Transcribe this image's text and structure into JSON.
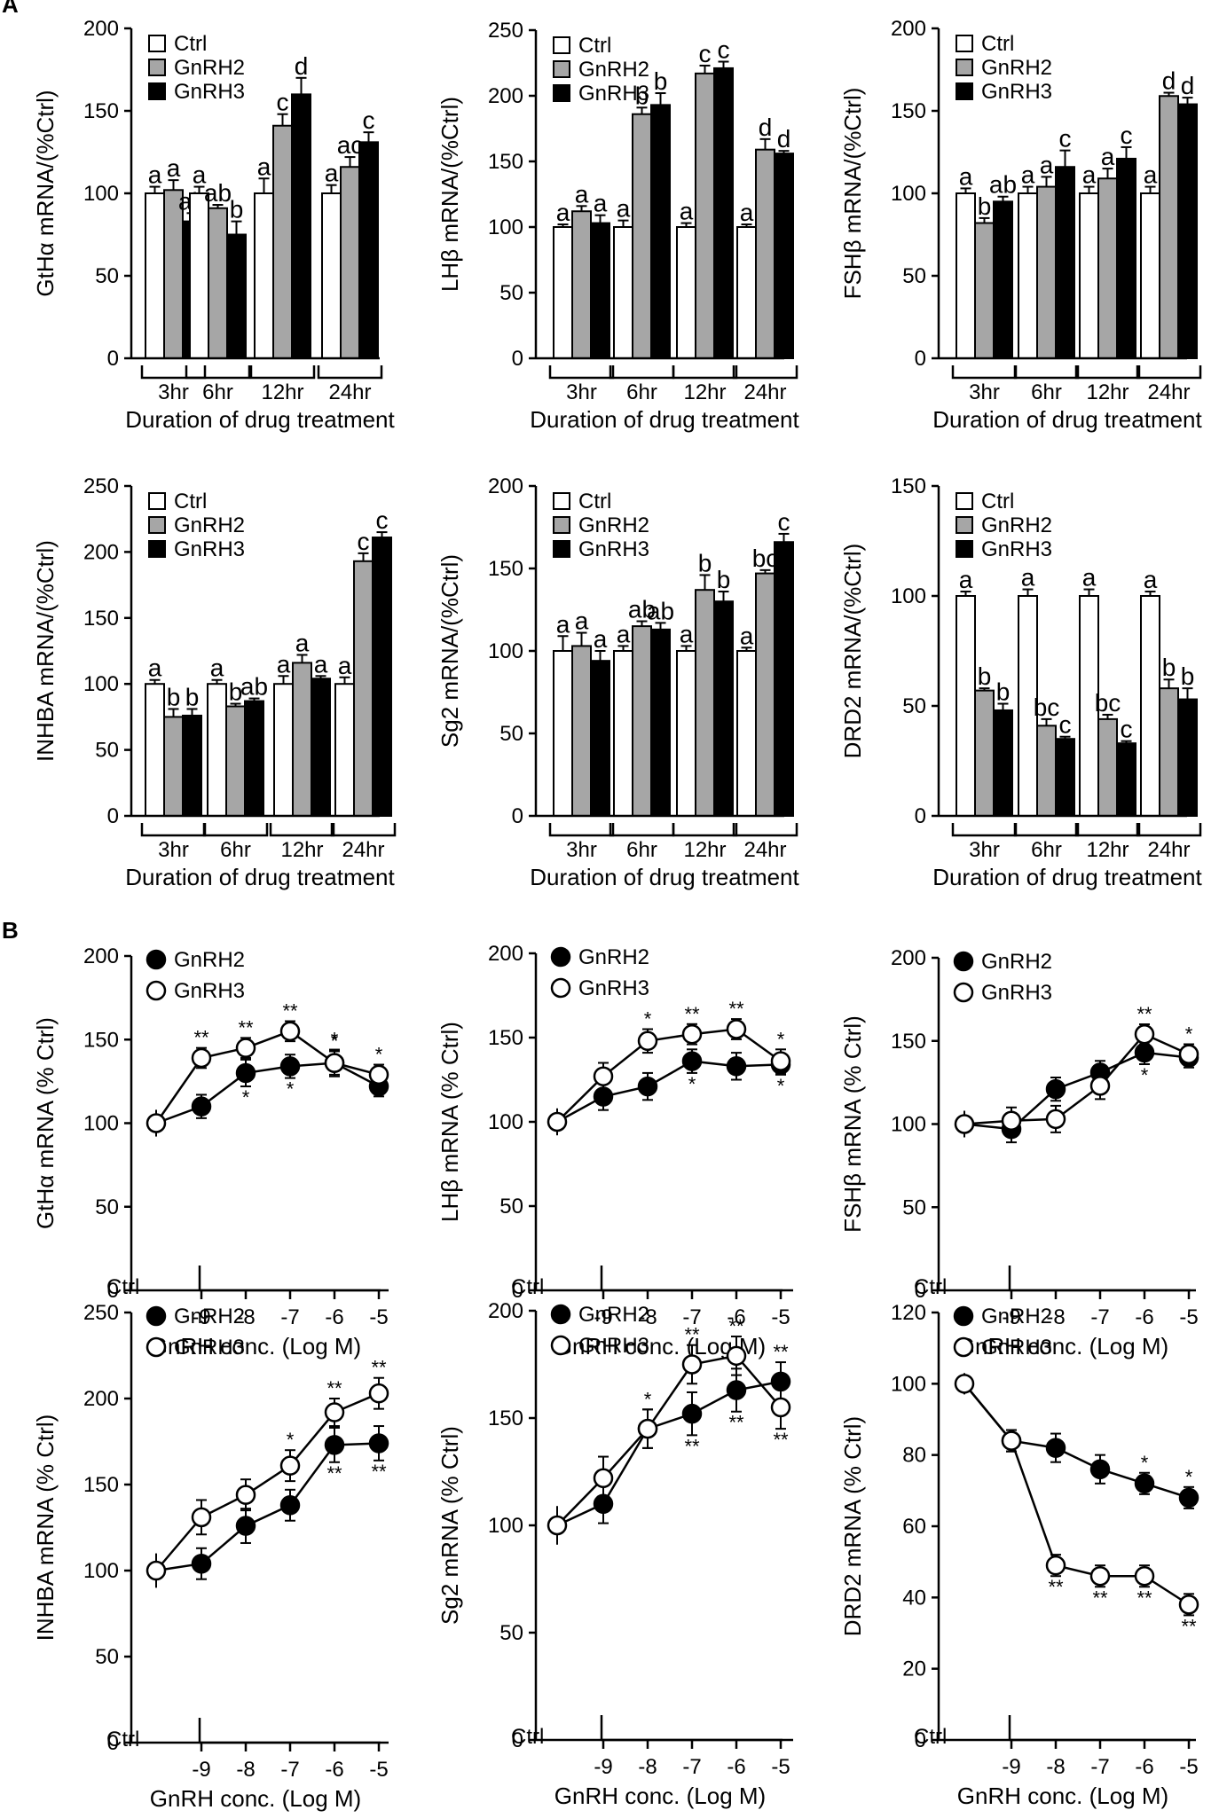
{
  "panel_labels": [
    "A",
    "B"
  ],
  "legend": {
    "ctrl": "Ctrl",
    "gnrh2": "GnRH2",
    "gnrh3": "GnRH3"
  },
  "colors": {
    "ctrl": "#ffffff",
    "gnrh2": "#a6a6a6",
    "gnrh3": "#000000",
    "open_marker": "#ffffff",
    "filled_marker": "#000000"
  },
  "chart_data": [
    {
      "id": "A1",
      "type": "bar",
      "ylabel": "GtHα mRNA/(%Ctrl)",
      "xlabel": "Duration of drug treatment",
      "ylim": [
        0,
        200
      ],
      "yticks": [
        0,
        50,
        100,
        150,
        200
      ],
      "categories": [
        "3hr",
        "6hr",
        "12hr",
        "24hr"
      ],
      "series": [
        {
          "name": "Ctrl",
          "values": [
            100,
            100,
            100,
            100
          ],
          "errors": [
            4,
            4,
            9,
            5
          ],
          "letters": [
            "a",
            "a",
            "a",
            "a"
          ]
        },
        {
          "name": "GnRH2",
          "values": [
            102,
            91,
            141,
            116
          ],
          "errors": [
            6,
            2,
            7,
            6
          ],
          "letters": [
            "a",
            "ab",
            "c",
            "ac"
          ]
        },
        {
          "name": "GnRH3",
          "values": [
            83,
            75,
            160,
            131
          ],
          "errors": [
            5,
            8,
            10,
            6
          ],
          "letters": [
            "ab",
            "b",
            "d",
            "c"
          ]
        }
      ]
    },
    {
      "id": "A2",
      "type": "bar",
      "ylabel": "LHβ mRNA/(%Ctrl)",
      "xlabel": "Duration of drug treatment",
      "ylim": [
        0,
        250
      ],
      "yticks": [
        0,
        50,
        100,
        150,
        200,
        250
      ],
      "categories": [
        "3hr",
        "6hr",
        "12hr",
        "24hr"
      ],
      "series": [
        {
          "name": "Ctrl",
          "values": [
            100,
            100,
            100,
            100
          ],
          "errors": [
            2,
            5,
            3,
            2
          ],
          "letters": [
            "a",
            "a",
            "a",
            "a"
          ]
        },
        {
          "name": "GnRH2",
          "values": [
            112,
            186,
            217,
            159
          ],
          "errors": [
            4,
            5,
            6,
            8
          ],
          "letters": [
            "a",
            "b",
            "c",
            "d"
          ]
        },
        {
          "name": "GnRH3",
          "values": [
            103,
            193,
            221,
            156
          ],
          "errors": [
            6,
            9,
            5,
            2
          ],
          "letters": [
            "a",
            "b",
            "c",
            "d"
          ]
        }
      ]
    },
    {
      "id": "A3",
      "type": "bar",
      "ylabel": "FSHβ mRNA/(%Ctrl)",
      "xlabel": "Duration of drug treatment",
      "ylim": [
        0,
        200
      ],
      "yticks": [
        0,
        50,
        100,
        150,
        200
      ],
      "categories": [
        "3hr",
        "6hr",
        "12hr",
        "24hr"
      ],
      "series": [
        {
          "name": "Ctrl",
          "values": [
            100,
            100,
            100,
            100
          ],
          "errors": [
            3,
            4,
            4,
            4
          ],
          "letters": [
            "a",
            "a",
            "a",
            "a"
          ]
        },
        {
          "name": "GnRH2",
          "values": [
            82,
            104,
            109,
            159
          ],
          "errors": [
            3,
            6,
            6,
            2
          ],
          "letters": [
            "b",
            "a",
            "a",
            "d"
          ]
        },
        {
          "name": "GnRH3",
          "values": [
            95,
            116,
            121,
            154
          ],
          "errors": [
            3,
            10,
            7,
            4
          ],
          "letters": [
            "ab",
            "c",
            "c",
            "d"
          ]
        }
      ]
    },
    {
      "id": "A4",
      "type": "bar",
      "ylabel": "INHBA mRNA/(%Ctrl)",
      "xlabel": "Duration of drug treatment",
      "ylim": [
        0,
        250
      ],
      "yticks": [
        0,
        50,
        100,
        150,
        200,
        250
      ],
      "categories": [
        "3hr",
        "6hr",
        "12hr",
        "24hr"
      ],
      "series": [
        {
          "name": "Ctrl",
          "values": [
            100,
            100,
            100,
            100
          ],
          "errors": [
            3,
            3,
            6,
            5
          ],
          "letters": [
            "a",
            "a",
            "a",
            "a"
          ]
        },
        {
          "name": "GnRH2",
          "values": [
            75,
            83,
            116,
            193
          ],
          "errors": [
            6,
            2,
            6,
            6
          ],
          "letters": [
            "b",
            "b",
            "a",
            "c"
          ]
        },
        {
          "name": "GnRH3",
          "values": [
            76,
            87,
            104,
            211
          ],
          "errors": [
            5,
            2,
            2,
            4
          ],
          "letters": [
            "b",
            "ab",
            "a",
            "c"
          ]
        }
      ]
    },
    {
      "id": "A5",
      "type": "bar",
      "ylabel": "Sg2 mRNA/(%Ctrl)",
      "xlabel": "Duration of drug treatment",
      "ylim": [
        0,
        200
      ],
      "yticks": [
        0,
        50,
        100,
        150,
        200
      ],
      "categories": [
        "3hr",
        "6hr",
        "12hr",
        "24hr"
      ],
      "series": [
        {
          "name": "Ctrl",
          "values": [
            100,
            100,
            100,
            100
          ],
          "errors": [
            9,
            3,
            3,
            2
          ],
          "letters": [
            "a",
            "a",
            "a",
            "a"
          ]
        },
        {
          "name": "GnRH2",
          "values": [
            103,
            115,
            137,
            147
          ],
          "errors": [
            8,
            3,
            9,
            2
          ],
          "letters": [
            "a",
            "ab",
            "b",
            "bc"
          ]
        },
        {
          "name": "GnRH3",
          "values": [
            94,
            113,
            130,
            166
          ],
          "errors": [
            6,
            4,
            6,
            5
          ],
          "letters": [
            "a",
            "ab",
            "b",
            "c"
          ]
        }
      ]
    },
    {
      "id": "A6",
      "type": "bar",
      "ylabel": "DRD2 mRNA/(%Ctrl)",
      "xlabel": "Duration of drug treatment",
      "ylim": [
        0,
        150
      ],
      "yticks": [
        0,
        50,
        100,
        150
      ],
      "categories": [
        "3hr",
        "6hr",
        "12hr",
        "24hr"
      ],
      "series": [
        {
          "name": "Ctrl",
          "values": [
            100,
            100,
            100,
            100
          ],
          "errors": [
            2,
            3,
            3,
            2
          ],
          "letters": [
            "a",
            "a",
            "a",
            "a"
          ]
        },
        {
          "name": "GnRH2",
          "values": [
            57,
            41,
            44,
            58
          ],
          "errors": [
            1,
            3,
            2,
            4
          ],
          "letters": [
            "b",
            "bc",
            "bc",
            "b"
          ]
        },
        {
          "name": "GnRH3",
          "values": [
            48,
            35,
            33,
            53
          ],
          "errors": [
            3,
            1,
            1,
            5
          ],
          "letters": [
            "b",
            "c",
            "c",
            "b"
          ]
        }
      ]
    },
    {
      "id": "B1",
      "type": "line",
      "ylabel": "GtHα mRNA (% Ctrl)",
      "xlabel": "GnRH conc. (Log M)",
      "ylim": [
        0,
        200
      ],
      "yticks": [
        0,
        50,
        100,
        150,
        200
      ],
      "x_ctrl_label": "Ctrl",
      "x": [
        -9,
        -8,
        -7,
        -6,
        -5
      ],
      "ctrl": {
        "value": 100,
        "error": 8
      },
      "series": [
        {
          "name": "GnRH2",
          "values": [
            110,
            130,
            134,
            136,
            122
          ],
          "errors": [
            7,
            8,
            7,
            8,
            6
          ],
          "stars": [
            "",
            "*",
            "*",
            "*",
            ""
          ]
        },
        {
          "name": "GnRH3",
          "values": [
            139,
            145,
            155,
            136,
            129
          ],
          "errors": [
            6,
            6,
            6,
            7,
            6
          ],
          "stars": [
            "**",
            "**",
            "**",
            "*",
            "*"
          ]
        }
      ]
    },
    {
      "id": "B2",
      "type": "line",
      "ylabel": "LHβ mRNA (% Ctrl)",
      "xlabel": "GnRH conc. (Log M)",
      "ylim": [
        0,
        200
      ],
      "yticks": [
        0,
        50,
        100,
        150,
        200
      ],
      "x_ctrl_label": "Ctrl",
      "x": [
        -9,
        -8,
        -7,
        -6,
        -5
      ],
      "ctrl": {
        "value": 100,
        "error": 8
      },
      "series": [
        {
          "name": "GnRH2",
          "values": [
            115,
            121,
            136,
            133,
            134
          ],
          "errors": [
            8,
            8,
            7,
            8,
            6
          ],
          "stars": [
            "",
            "",
            "*",
            "",
            "*"
          ]
        },
        {
          "name": "GnRH3",
          "values": [
            127,
            148,
            152,
            155,
            136
          ],
          "errors": [
            8,
            7,
            6,
            6,
            7
          ],
          "stars": [
            "",
            "*",
            "**",
            "**",
            "*"
          ]
        }
      ]
    },
    {
      "id": "B3",
      "type": "line",
      "ylabel": "FSHβ mRNA (% Ctrl)",
      "xlabel": "GnRH conc. (Log M)",
      "ylim": [
        0,
        200
      ],
      "yticks": [
        0,
        50,
        100,
        150,
        200
      ],
      "x_ctrl_label": "Ctrl",
      "x": [
        -9,
        -8,
        -7,
        -6,
        -5
      ],
      "ctrl": {
        "value": 100,
        "error": 8
      },
      "series": [
        {
          "name": "GnRH2",
          "values": [
            97,
            121,
            131,
            143,
            140
          ],
          "errors": [
            8,
            7,
            7,
            7,
            6
          ],
          "stars": [
            "",
            "",
            "",
            "*",
            ""
          ]
        },
        {
          "name": "GnRH3",
          "values": [
            102,
            103,
            123,
            154,
            142
          ],
          "errors": [
            8,
            8,
            8,
            6,
            6
          ],
          "stars": [
            "",
            "",
            "",
            "**",
            "*"
          ]
        }
      ]
    },
    {
      "id": "B4",
      "type": "line",
      "ylabel": "INHBA mRNA (% Ctrl)",
      "xlabel": "GnRH conc. (Log M)",
      "ylim": [
        0,
        250
      ],
      "yticks": [
        0,
        50,
        100,
        150,
        200,
        250
      ],
      "x_ctrl_label": "Ctrl",
      "x": [
        -9,
        -8,
        -7,
        -6,
        -5
      ],
      "ctrl": {
        "value": 100,
        "error": 10
      },
      "series": [
        {
          "name": "GnRH2",
          "values": [
            104,
            126,
            138,
            173,
            174
          ],
          "errors": [
            9,
            10,
            9,
            10,
            10
          ],
          "stars": [
            "",
            "",
            "",
            "**",
            "**"
          ]
        },
        {
          "name": "GnRH3",
          "values": [
            131,
            144,
            161,
            192,
            203
          ],
          "errors": [
            10,
            9,
            9,
            8,
            9
          ],
          "stars": [
            "",
            "",
            "*",
            "**",
            "**"
          ]
        }
      ]
    },
    {
      "id": "B5",
      "type": "line",
      "ylabel": "Sg2 mRNA (% Ctrl)",
      "xlabel": "GnRH conc. (Log M)",
      "ylim": [
        0,
        200
      ],
      "yticks": [
        0,
        50,
        100,
        150,
        200
      ],
      "x_ctrl_label": "Ctrl",
      "x": [
        -9,
        -8,
        -7,
        -6,
        -5
      ],
      "ctrl": {
        "value": 100,
        "error": 9
      },
      "series": [
        {
          "name": "GnRH2",
          "values": [
            110,
            145,
            152,
            163,
            167
          ],
          "errors": [
            9,
            9,
            10,
            10,
            9
          ],
          "stars": [
            "",
            "*",
            "**",
            "**",
            "**"
          ]
        },
        {
          "name": "GnRH3",
          "values": [
            122,
            145,
            175,
            179,
            155
          ],
          "errors": [
            10,
            9,
            9,
            9,
            10
          ],
          "stars": [
            "",
            "",
            "**",
            "**",
            "**"
          ]
        }
      ]
    },
    {
      "id": "B6",
      "type": "line",
      "ylabel": "DRD2 mRNA (% Ctrl)",
      "xlabel": "GnRH conc. (Log M)",
      "ylim": [
        0,
        120
      ],
      "yticks": [
        0,
        20,
        40,
        60,
        80,
        100,
        120
      ],
      "x_ctrl_label": "Ctrl",
      "x": [
        -9,
        -8,
        -7,
        -6,
        -5
      ],
      "ctrl": {
        "value": 100,
        "error": 3
      },
      "series": [
        {
          "name": "GnRH2",
          "values": [
            84,
            82,
            76,
            72,
            68
          ],
          "errors": [
            3,
            4,
            4,
            3,
            3
          ],
          "stars": [
            "",
            "",
            "",
            "*",
            "*"
          ]
        },
        {
          "name": "GnRH3",
          "values": [
            84,
            49,
            46,
            46,
            38
          ],
          "errors": [
            3,
            3,
            3,
            3,
            3
          ],
          "stars": [
            "",
            "**",
            "**",
            "**",
            "**"
          ]
        }
      ]
    }
  ]
}
